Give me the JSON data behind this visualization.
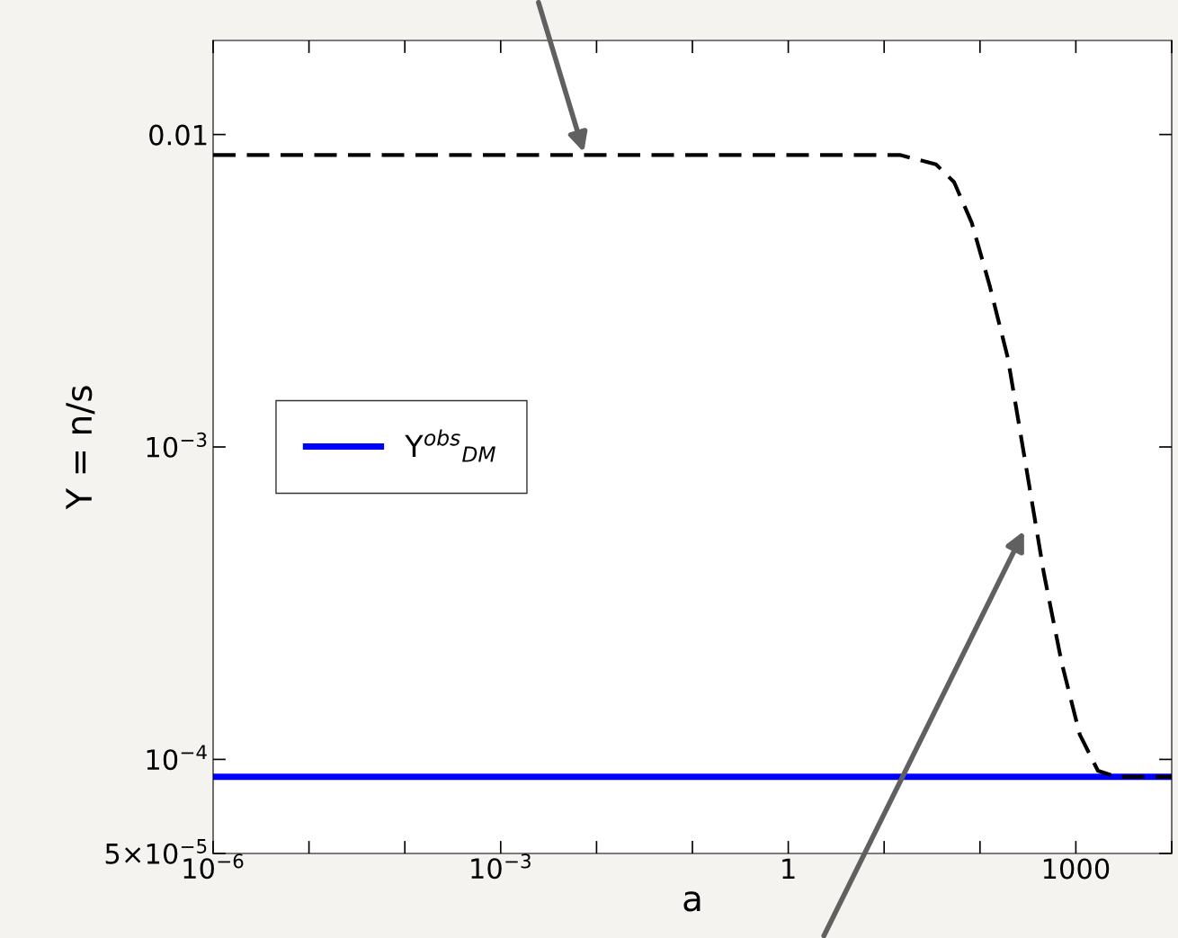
{
  "chart_data": {
    "type": "line",
    "xlabel": "a",
    "ylabel": "Y = n/s",
    "log": "xy",
    "xlim": [
      1e-06,
      10000
    ],
    "ylim": [
      5e-05,
      0.02
    ],
    "xticks": [
      {
        "value": 1e-06,
        "label": "10$^{−6}$"
      },
      {
        "value": 1e-05,
        "label": null
      },
      {
        "value": 0.0001,
        "label": null
      },
      {
        "value": 0.001,
        "label": "10$^{−3}$"
      },
      {
        "value": 0.01,
        "label": null
      },
      {
        "value": 0.1,
        "label": null
      },
      1,
      {
        "value": 10,
        "label": null
      },
      {
        "value": 100,
        "label": null
      },
      1000,
      {
        "value": 10000,
        "label": null
      }
    ],
    "yticks": [
      {
        "value": 5e-05,
        "label": "5×10$^{−5}$"
      },
      {
        "value": 0.0001,
        "label": "10$^{−4}$"
      },
      {
        "value": 0.001,
        "label": "10$^{−3}$"
      },
      0.01
    ],
    "grid": false,
    "legend": "center left",
    "series": [
      {
        "name": "Y$^{obs}$$_{DM}$",
        "color": "#0000ff",
        "line_style": "solid",
        "x": [
          1e-06,
          10000
        ],
        "values": [
          8.8e-05,
          8.8e-05
        ]
      },
      {
        "color": "#000000",
        "line_style": "dashed",
        "x": [
          1e-06,
          14.6,
          34.7,
          53.7,
          82,
          126,
          195,
          301,
          464,
          714,
          1100,
          1700,
          2620,
          10000
        ],
        "values": [
          0.0086,
          0.0086,
          0.00803,
          0.00704,
          0.00522,
          0.00329,
          0.00193,
          0.000873,
          0.000394,
          0.000203,
          0.00012,
          9.2e-05,
          8.8e-05,
          8.8e-05
        ]
      }
    ]
  }
}
